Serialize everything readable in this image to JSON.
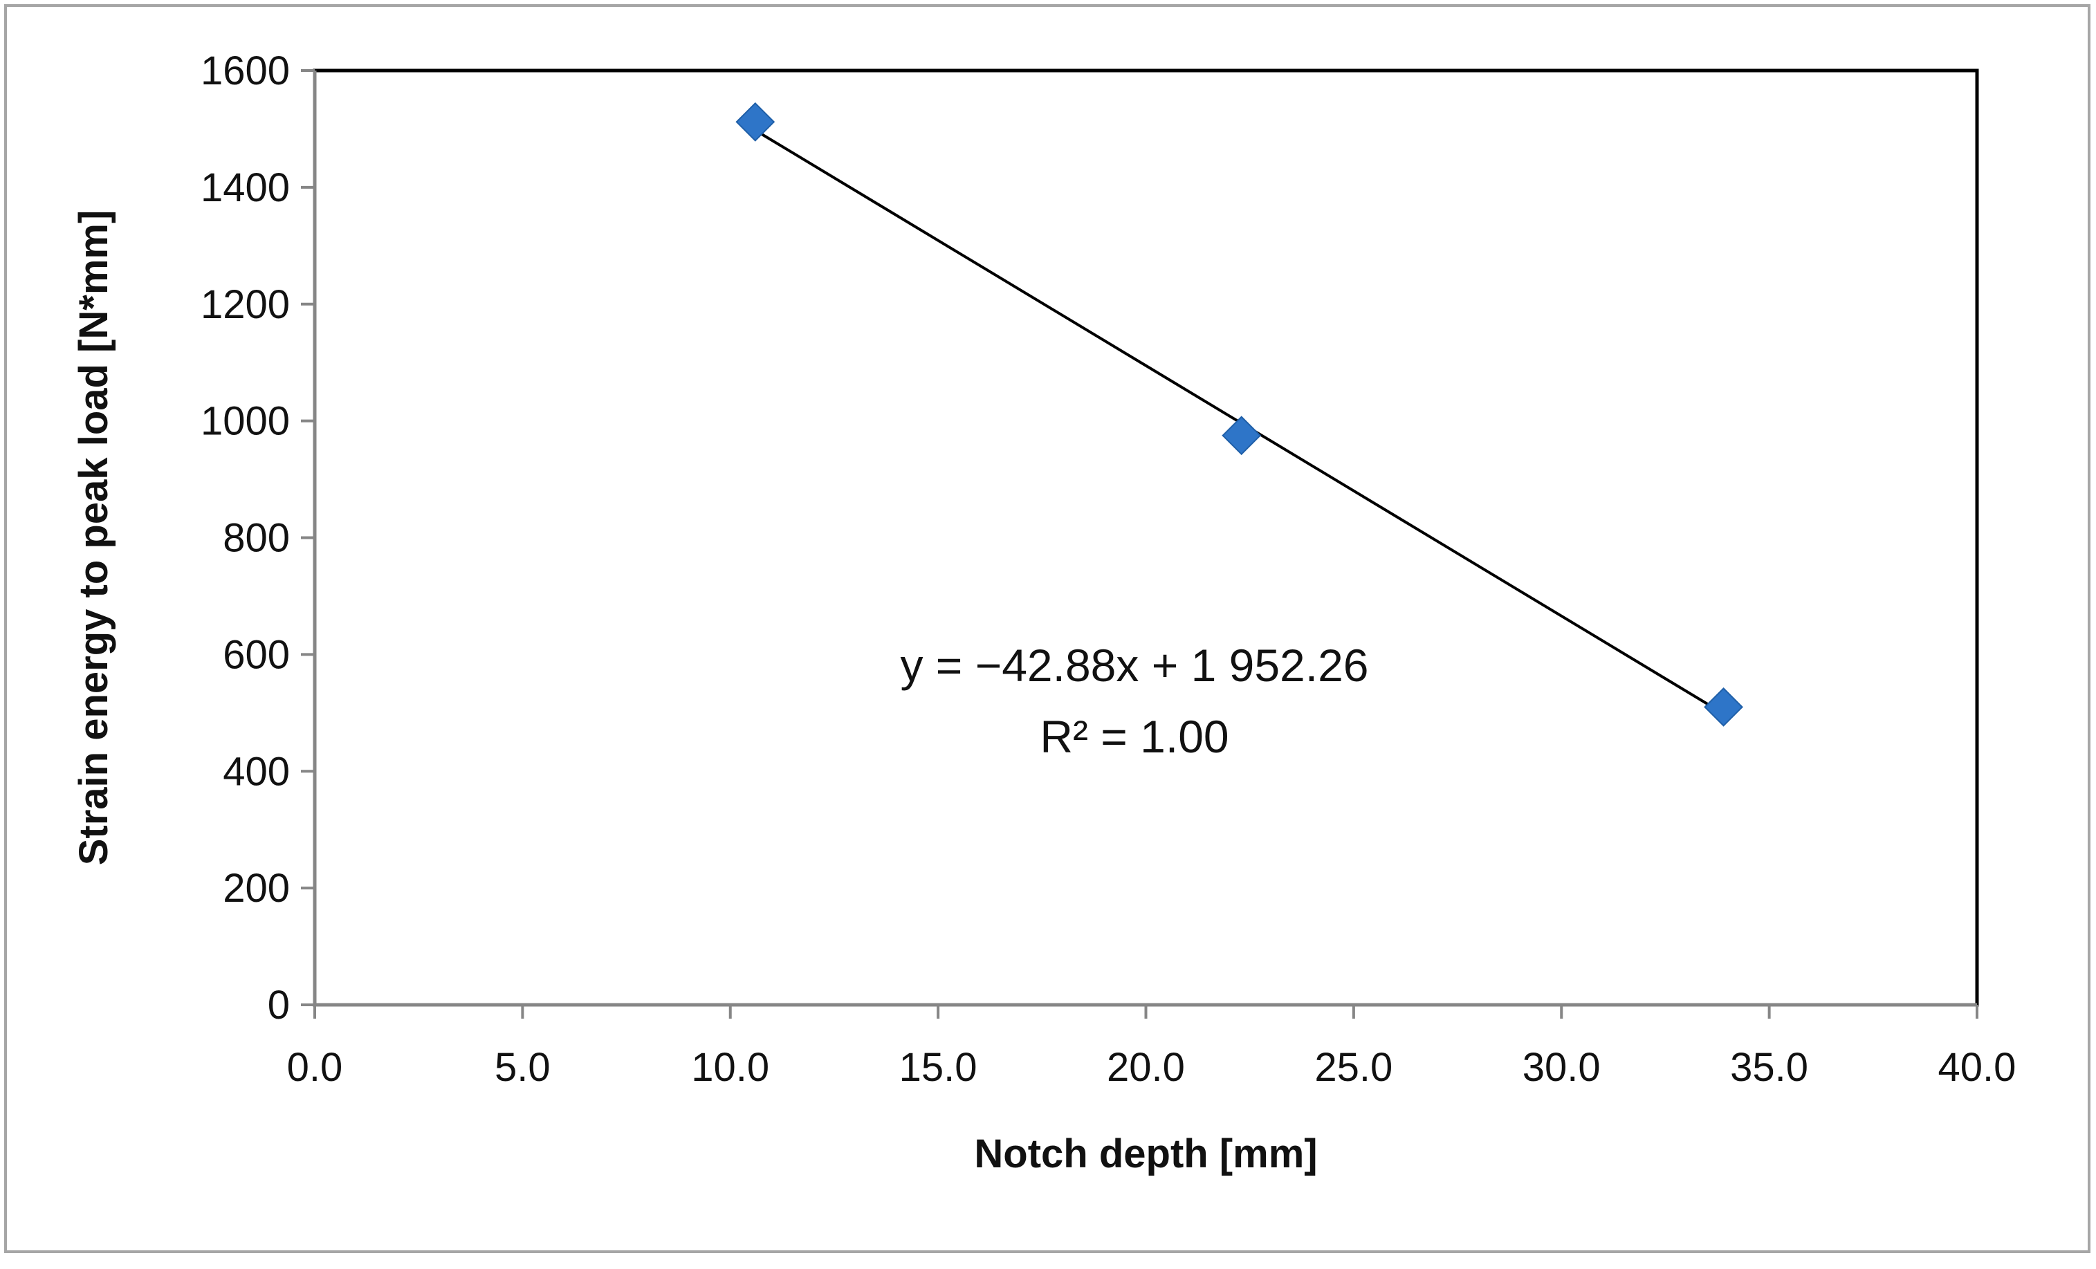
{
  "chart_data": {
    "type": "scatter",
    "title": "",
    "xlabel": "Notch depth [mm]",
    "ylabel": "Strain energy to peak load [N*mm]",
    "xlim": [
      0,
      40
    ],
    "ylim": [
      0,
      1600
    ],
    "x_ticks": [
      "0.0",
      "5.0",
      "10.0",
      "15.0",
      "20.0",
      "25.0",
      "30.0",
      "35.0",
      "40.0"
    ],
    "y_ticks": [
      "0",
      "200",
      "400",
      "600",
      "800",
      "1000",
      "1200",
      "1400",
      "1600"
    ],
    "grid": false,
    "legend": "none",
    "series": [
      {
        "marker": "diamond",
        "color": "#2e75c8",
        "points": [
          {
            "x": 10.6,
            "y": 1512
          },
          {
            "x": 22.3,
            "y": 975
          },
          {
            "x": 33.9,
            "y": 510
          }
        ]
      }
    ],
    "trendline": {
      "type": "linear",
      "slope": -42.88,
      "intercept": 1952.26,
      "x_range": [
        10.6,
        33.9
      ],
      "color": "#000000"
    },
    "annotations": {
      "equation": "y = −42.88x + 1 952.26",
      "r_squared": "R² = 1.00"
    },
    "colors": {
      "frame": "#a6a6a6",
      "plot_border": "#000000",
      "axis": "#868686"
    }
  }
}
